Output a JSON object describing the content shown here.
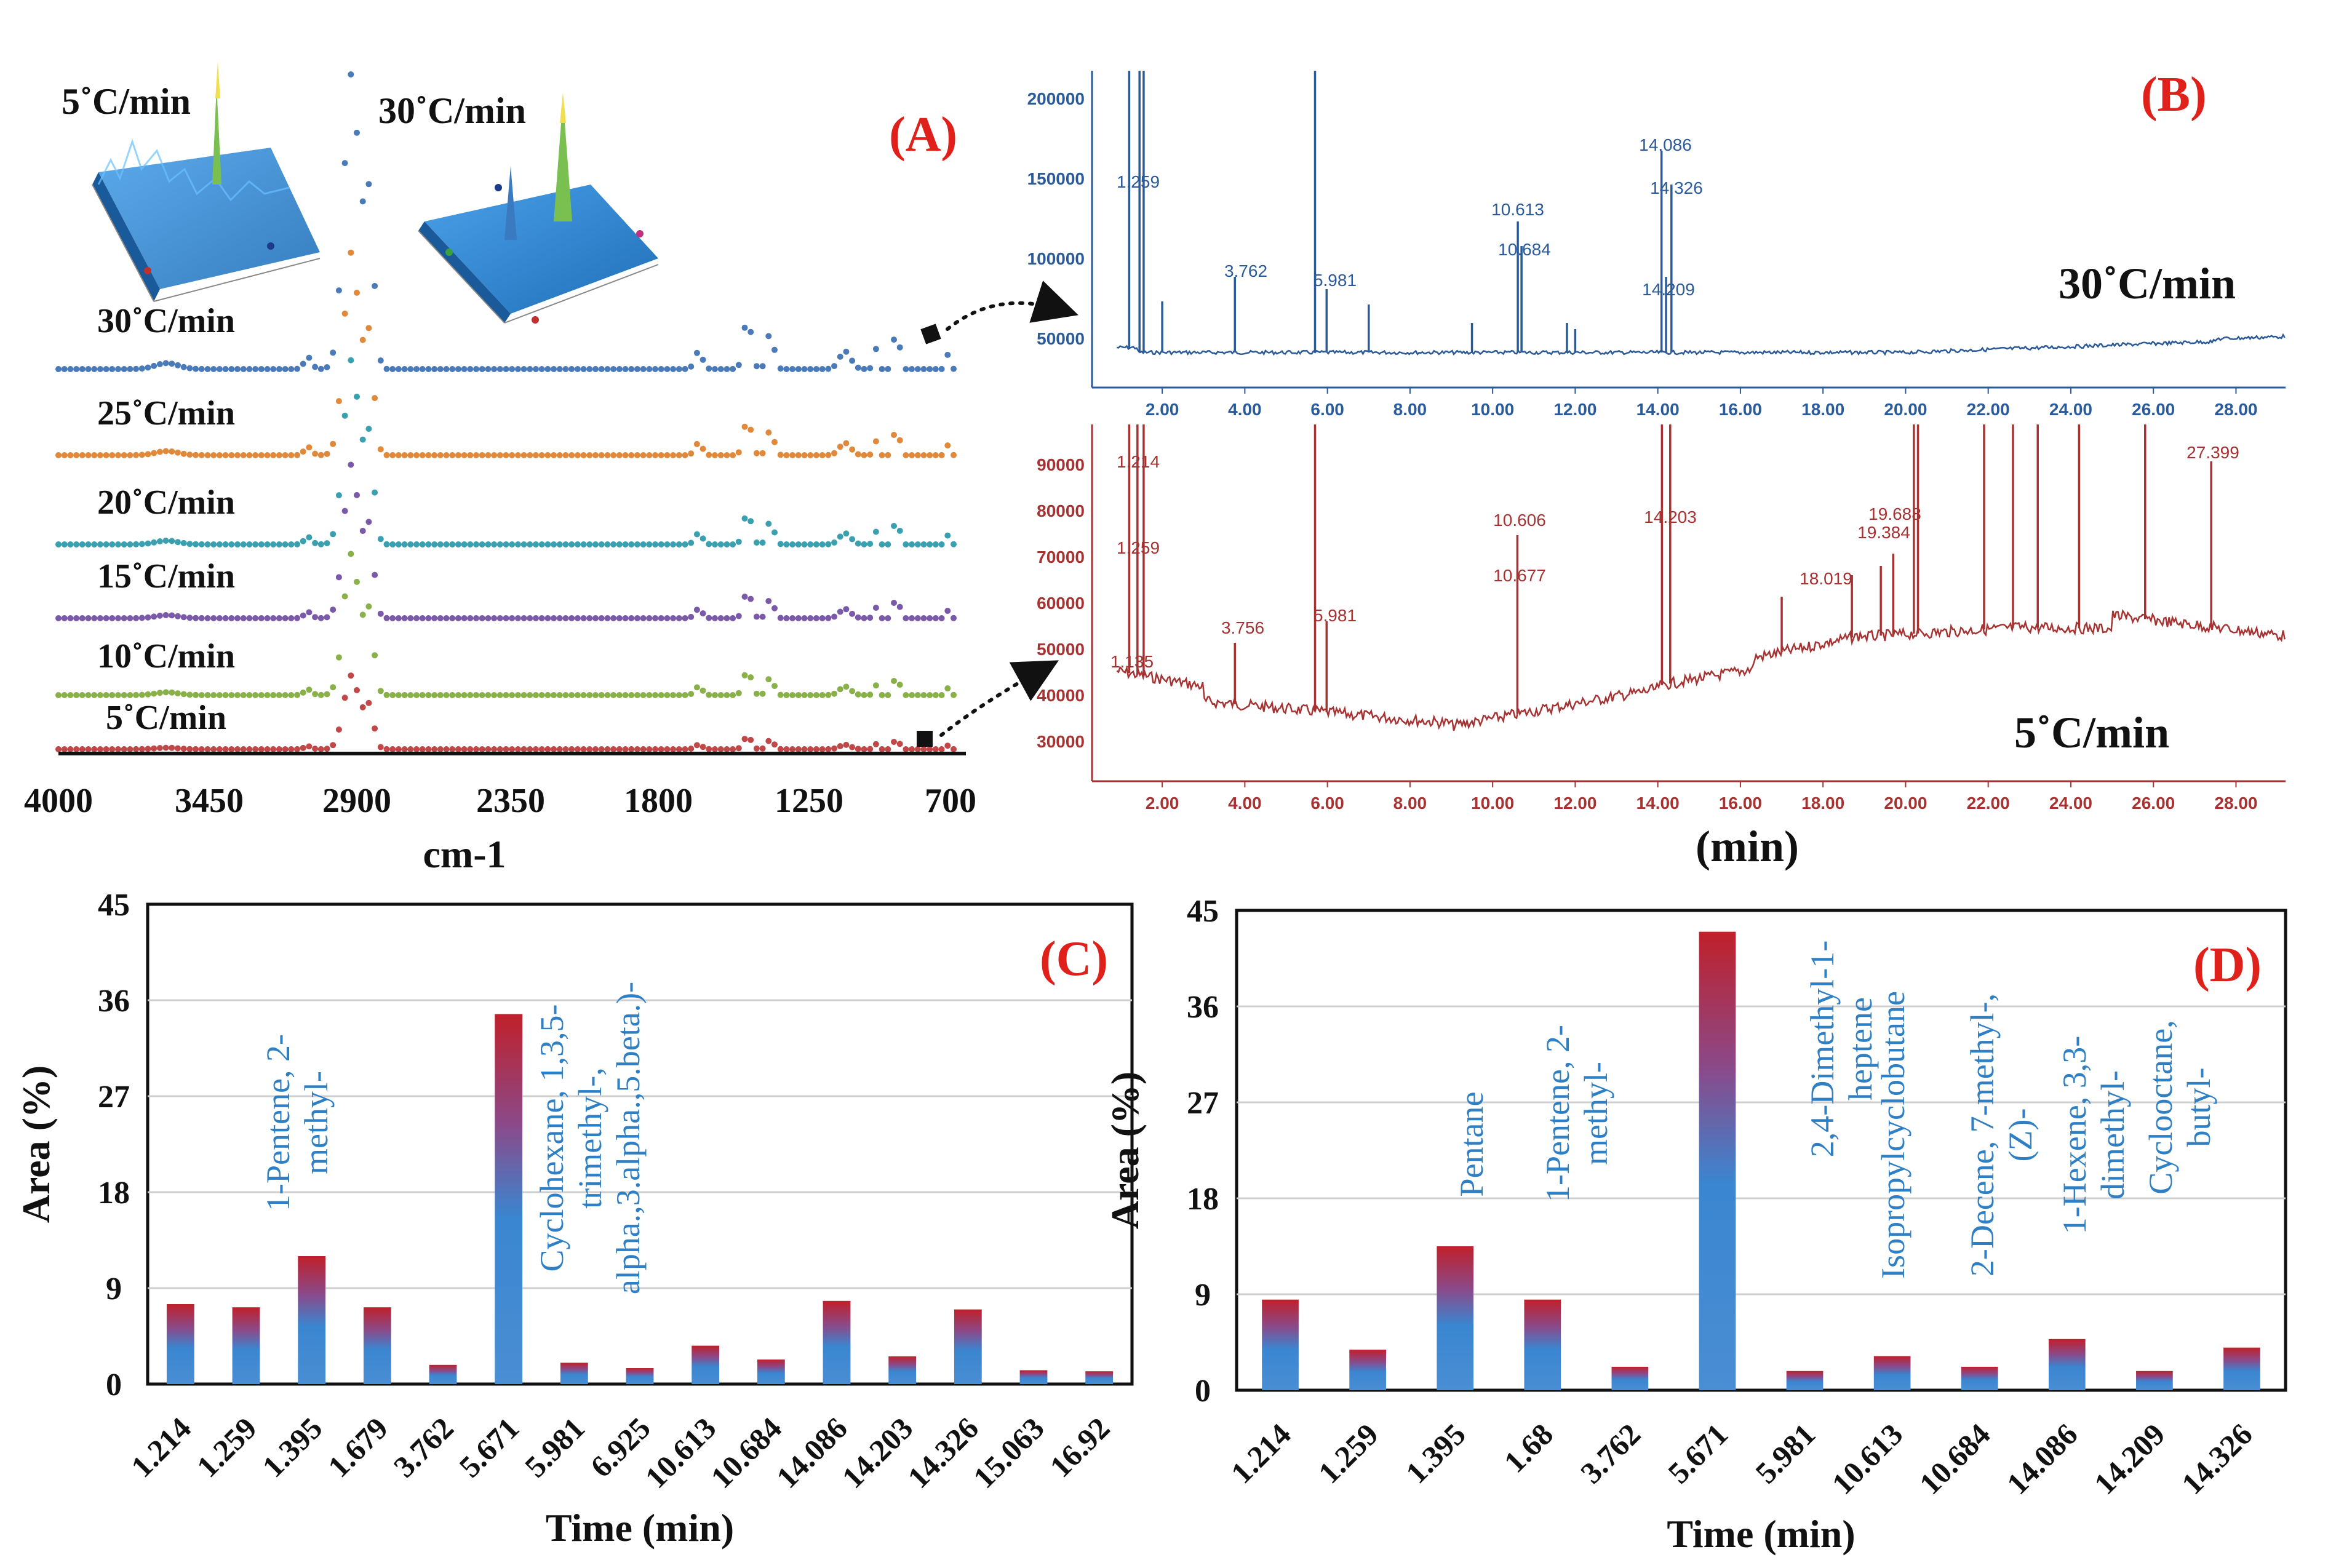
{
  "colors": {
    "label_red": "#e0201b",
    "trace_blue": "#2a5a9a",
    "trace_red": "#a63232",
    "compound_text": "#2e7fc4",
    "bar_top": "#c0202a",
    "bar_bottom": "#3a86d0",
    "surface_blue": "#2f8fd8"
  },
  "panel_A": {
    "label": "(A)",
    "inset_labels": [
      "5˚C/min",
      "30˚C/min"
    ],
    "xlabel": "cm-1",
    "x_ticks": [
      "4000",
      "3450",
      "2900",
      "2350",
      "1800",
      "1250",
      "700"
    ],
    "traces": [
      {
        "name": "30˚C/min",
        "color": "#4a7ab8"
      },
      {
        "name": "25˚C/min",
        "color": "#e0893a"
      },
      {
        "name": "20˚C/min",
        "color": "#3aa0b0"
      },
      {
        "name": "15˚C/min",
        "color": "#7a5aa8"
      },
      {
        "name": "10˚C/min",
        "color": "#8ab04a"
      },
      {
        "name": "5˚C/min",
        "color": "#c04848"
      }
    ]
  },
  "panel_B": {
    "label": "(B)",
    "xlabel": "(min)",
    "x_ticks": [
      "2.00",
      "4.00",
      "6.00",
      "8.00",
      "10.00",
      "12.00",
      "14.00",
      "16.00",
      "18.00",
      "20.00",
      "22.00",
      "24.00",
      "26.00",
      "28.00"
    ],
    "top": {
      "rate": "30˚C/min",
      "y_ticks": [
        "200000",
        "150000",
        "100000",
        "50000"
      ],
      "peaks": [
        "1.259",
        "3.762",
        "5.981",
        "10.613",
        "10.684",
        "14.086",
        "14.326",
        "14.209"
      ]
    },
    "bottom": {
      "rate": "5˚C/min",
      "y_ticks": [
        "90000",
        "80000",
        "70000",
        "60000",
        "50000",
        "40000",
        "30000"
      ],
      "peaks": [
        "1.214",
        "1.259",
        "1.135",
        "3.756",
        "5.981",
        "10.606",
        "10.677",
        "14.203",
        "19.688",
        "19.384",
        "18.019",
        "27.399"
      ]
    }
  },
  "chart_data": [
    {
      "panel": "(C)",
      "type": "bar",
      "title": "",
      "xlabel": "Time (min)",
      "ylabel": "Area (%)",
      "ylim": [
        0,
        45
      ],
      "y_ticks": [
        "0",
        "9",
        "18",
        "27",
        "36",
        "45"
      ],
      "categories": [
        "1.214",
        "1.259",
        "1.395",
        "1.679",
        "3.762",
        "5.671",
        "5.981",
        "6.925",
        "10.613",
        "10.684",
        "14.086",
        "14.203",
        "14.326",
        "15.063",
        "16.92"
      ],
      "values": [
        7.5,
        7.2,
        12.0,
        7.2,
        1.8,
        34.7,
        2.0,
        1.5,
        3.6,
        2.3,
        7.8,
        2.6,
        7.0,
        1.3,
        1.2
      ],
      "annotations": [
        {
          "category": "1.395",
          "lines": [
            "1-Pentene, 2-",
            "methyl-"
          ]
        },
        {
          "category": "5.671",
          "lines": [
            "Cyclohexane, 1,3,5-",
            "trimethyl-,",
            "alpha.,3.alpha.,5.beta.)-"
          ]
        }
      ]
    },
    {
      "panel": "(D)",
      "type": "bar",
      "title": "",
      "xlabel": "Time (min)",
      "ylabel": "Area (%)",
      "ylim": [
        0,
        45
      ],
      "y_ticks": [
        "0",
        "9",
        "18",
        "27",
        "36",
        "45"
      ],
      "categories": [
        "1.214",
        "1.259",
        "1.395",
        "1.68",
        "3.762",
        "5.671",
        "5.981",
        "10.613",
        "10.684",
        "14.086",
        "14.209",
        "14.326"
      ],
      "values": [
        8.5,
        3.8,
        13.5,
        8.5,
        2.2,
        43.0,
        1.8,
        3.2,
        2.2,
        4.8,
        1.8,
        4.0
      ],
      "annotations": [
        {
          "category": "1.395",
          "lines": [
            "Pentane"
          ]
        },
        {
          "category": "1.68",
          "lines": [
            "1-Pentene, 2-",
            "methyl-"
          ]
        },
        {
          "category": "5.671",
          "lines": [
            "2,4-Dimethyl-1-",
            "heptene"
          ]
        },
        {
          "category": "5.981",
          "lines": [
            "Isopropylcyclobutane"
          ]
        },
        {
          "category": "10.684",
          "lines": [
            "2-Decene, 7-methyl-,",
            "(Z)-"
          ]
        },
        {
          "category": "14.086",
          "lines": [
            "1-Hexene, 3,3-",
            "dimethyl-"
          ]
        },
        {
          "category": "14.209",
          "lines": [
            "Cyclooctane,",
            "butyl-"
          ]
        }
      ]
    }
  ]
}
